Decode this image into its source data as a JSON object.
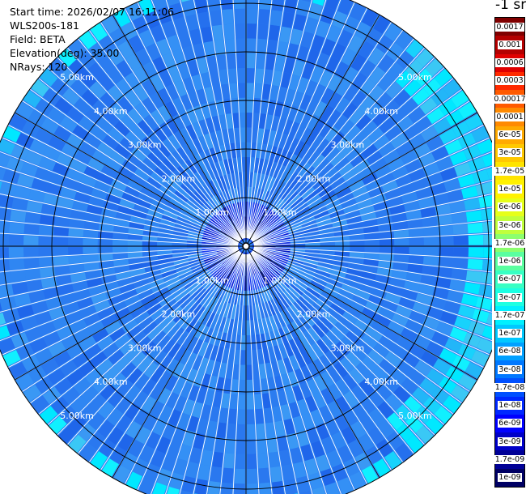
{
  "info": {
    "start_time": "Start time: 2026/02/07 16:11:06",
    "instrument": "WLS200s-181",
    "field": "Field: BETA",
    "elevation": "Elevation(deg): 35.00",
    "nrays": "NRays: 120"
  },
  "colorbar": {
    "title": "-1 sr-",
    "labels": [
      "0.0017",
      "0.001",
      "0.0006",
      "0.0003",
      "0.00017",
      "0.0001",
      "6e-05",
      "3e-05",
      "1.7e-05",
      "1e-05",
      "6e-06",
      "3e-06",
      "1.7e-06",
      "1e-06",
      "6e-07",
      "3e-07",
      "1.7e-07",
      "1e-07",
      "6e-08",
      "3e-08",
      "1.7e-08",
      "1e-08",
      "6e-09",
      "3e-09",
      "1.7e-09",
      "1e-09"
    ],
    "colors": [
      "#800000",
      "#b40000",
      "#e00000",
      "#ff2a00",
      "#ff5a00",
      "#ff8a00",
      "#ffaa00",
      "#ffc800",
      "#ffe400",
      "#fff200",
      "#e6ff1a",
      "#c0ff3c",
      "#8cff6e",
      "#5affa0",
      "#38ffc4",
      "#1cffe2",
      "#00f0ff",
      "#00c8ff",
      "#00a0ff",
      "#0078ff",
      "#0050ff",
      "#0028ff",
      "#0000ff",
      "#0000c8",
      "#000096",
      "#000064"
    ]
  },
  "chart_data": {
    "type": "heatmap",
    "projection": "polar PPI",
    "field": "BETA",
    "elevation_deg": 35.0,
    "n_rays": 120,
    "range_rings_km": [
      1,
      2,
      3,
      4,
      5
    ],
    "ring_labels": [
      "1.00km",
      "2.00km",
      "3.00km",
      "4.00km",
      "5.00km"
    ],
    "max_range_km": 5.5,
    "radial_lines_deg": [
      0,
      30,
      60,
      90,
      120,
      150,
      180,
      210,
      240,
      270,
      300,
      330
    ],
    "scale": "log",
    "value_range": [
      1e-09,
      0.0017
    ],
    "typical_value": "1e-07 to 6e-08",
    "near_field_value": "3e-09 to 1.7e-08",
    "east_edge_value": "1.7e-07 to 3e-07"
  },
  "colors": {
    "field_main": "#2b7cf0",
    "field_edge": "#00e0ff"
  }
}
